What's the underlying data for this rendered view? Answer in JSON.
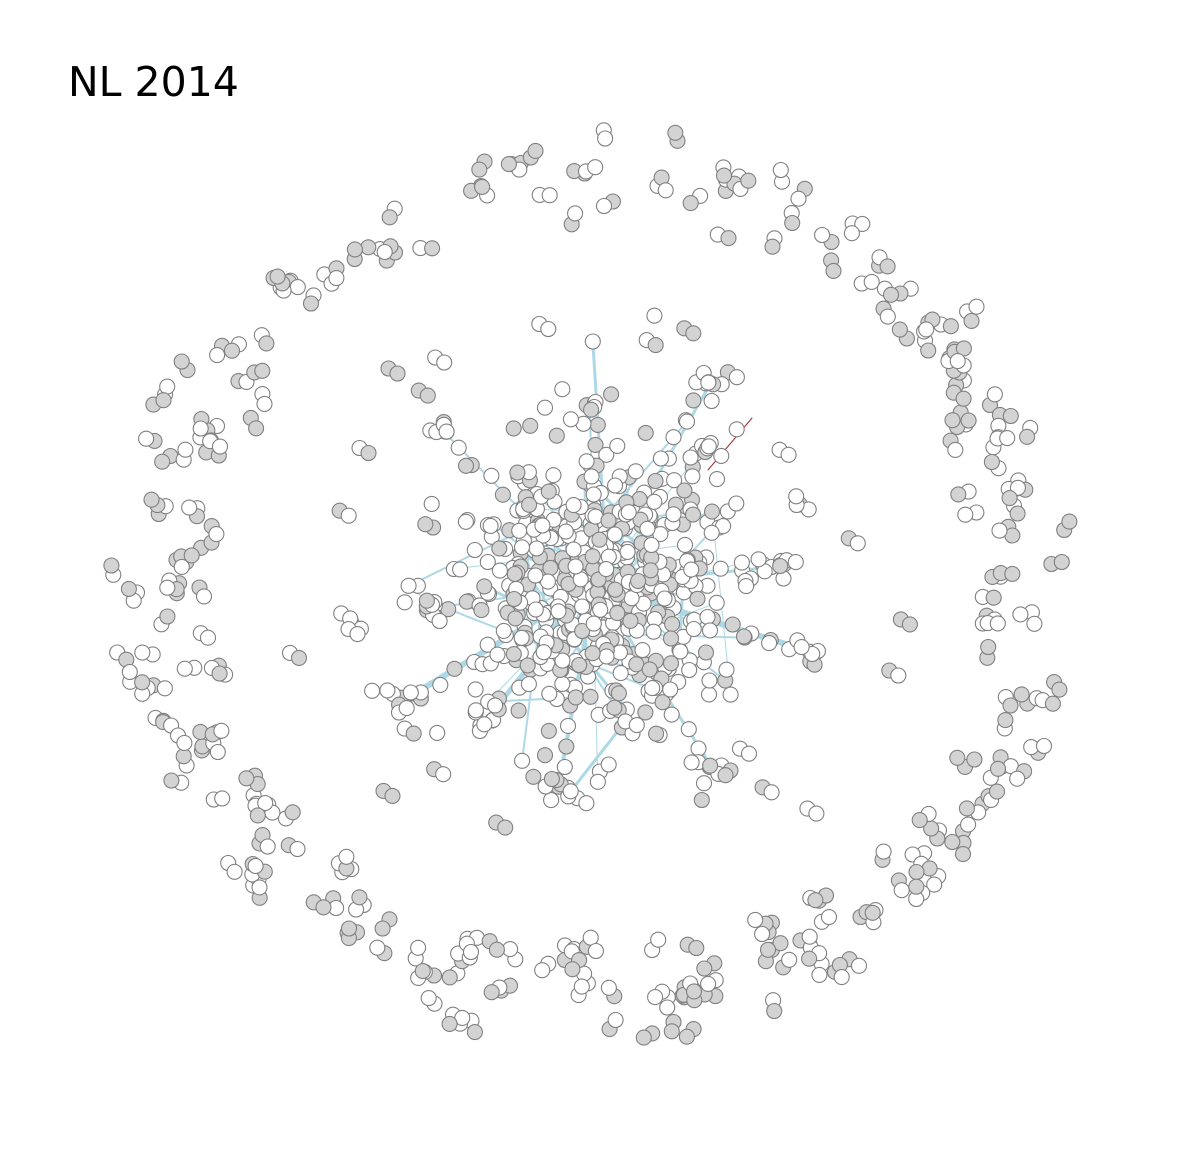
{
  "title": "NL 2014",
  "colors": {
    "background": "#ffffff",
    "node_fill_white": "#ffffff",
    "node_fill_grey": "#d3d3d3",
    "node_stroke": "#808080",
    "edge_main": "#add8e6",
    "edge_accent": "#a52a2a"
  }
}
